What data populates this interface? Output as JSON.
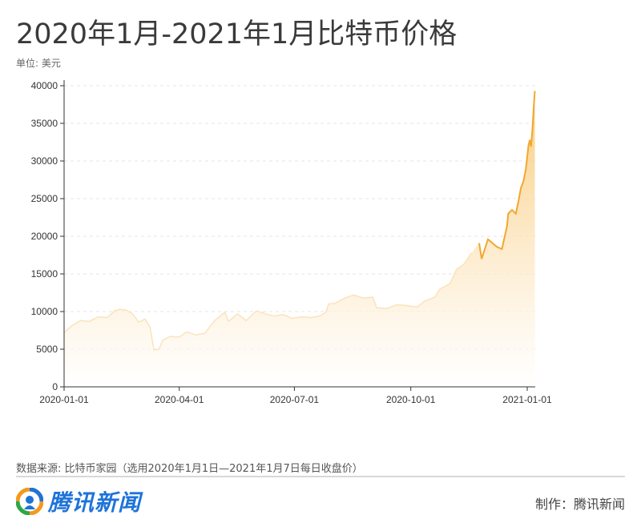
{
  "header": {
    "title": "2020年1月-2021年1月比特币价格",
    "unit": "单位: 美元"
  },
  "footer": {
    "source": "数据来源: 比特币家园（选用2020年1月1日—2021年1月7日每日收盘价）",
    "logo_text": "腾讯新闻",
    "credit": "制作：腾讯新闻"
  },
  "colors": {
    "line": "#f2a72e",
    "area_top": "#f9c874",
    "area_bottom": "#ffffff",
    "grid": "#e6e6e6",
    "logo_blue": "#1e73d8",
    "logo_orange": "#f29a1f",
    "logo_green": "#2aa84a"
  },
  "chart_data": {
    "type": "area",
    "title": "2020年1月-2021年1月比特币价格",
    "ylabel": "单位: 美元",
    "xlabel": "",
    "ylim": [
      0,
      40000
    ],
    "xlim": [
      "2020-01-01",
      "2021-01-07"
    ],
    "y_ticks": [
      "0",
      "5000",
      "10000",
      "15000",
      "20000",
      "25000",
      "30000",
      "35000",
      "40000"
    ],
    "x_ticks": [
      "2020-01-01",
      "2020-04-01",
      "2020-07-01",
      "2020-10-01",
      "2021-01-01"
    ],
    "grid": true,
    "series": [
      {
        "values": [
          [
            "2020-01-01",
            7200
          ],
          [
            "2020-01-07",
            8100
          ],
          [
            "2020-01-14",
            8800
          ],
          [
            "2020-01-21",
            8700
          ],
          [
            "2020-01-28",
            9300
          ],
          [
            "2020-02-04",
            9200
          ],
          [
            "2020-02-10",
            10100
          ],
          [
            "2020-02-14",
            10300
          ],
          [
            "2020-02-19",
            10200
          ],
          [
            "2020-02-24",
            9700
          ],
          [
            "2020-02-29",
            8600
          ],
          [
            "2020-03-05",
            9000
          ],
          [
            "2020-03-09",
            7900
          ],
          [
            "2020-03-12",
            4900
          ],
          [
            "2020-03-16",
            5000
          ],
          [
            "2020-03-19",
            6200
          ],
          [
            "2020-03-25",
            6700
          ],
          [
            "2020-04-01",
            6600
          ],
          [
            "2020-04-07",
            7300
          ],
          [
            "2020-04-14",
            6900
          ],
          [
            "2020-04-21",
            7100
          ],
          [
            "2020-04-29",
            8800
          ],
          [
            "2020-05-07",
            9900
          ],
          [
            "2020-05-10",
            8700
          ],
          [
            "2020-05-17",
            9700
          ],
          [
            "2020-05-24",
            8800
          ],
          [
            "2020-06-01",
            10100
          ],
          [
            "2020-06-08",
            9700
          ],
          [
            "2020-06-15",
            9400
          ],
          [
            "2020-06-22",
            9600
          ],
          [
            "2020-06-29",
            9100
          ],
          [
            "2020-07-07",
            9300
          ],
          [
            "2020-07-14",
            9200
          ],
          [
            "2020-07-21",
            9400
          ],
          [
            "2020-07-26",
            9900
          ],
          [
            "2020-07-28",
            11000
          ],
          [
            "2020-08-02",
            11100
          ],
          [
            "2020-08-10",
            11800
          ],
          [
            "2020-08-17",
            12200
          ],
          [
            "2020-08-24",
            11800
          ],
          [
            "2020-09-01",
            11900
          ],
          [
            "2020-09-04",
            10500
          ],
          [
            "2020-09-12",
            10400
          ],
          [
            "2020-09-20",
            10900
          ],
          [
            "2020-09-28",
            10800
          ],
          [
            "2020-10-06",
            10600
          ],
          [
            "2020-10-12",
            11400
          ],
          [
            "2020-10-20",
            11900
          ],
          [
            "2020-10-24",
            13000
          ],
          [
            "2020-11-01",
            13700
          ],
          [
            "2020-11-06",
            15600
          ],
          [
            "2020-11-12",
            16300
          ],
          [
            "2020-11-18",
            17800
          ],
          [
            "2020-11-24",
            19100
          ],
          [
            "2020-11-26",
            17000
          ],
          [
            "2020-12-01",
            19600
          ],
          [
            "2020-12-08",
            18600
          ],
          [
            "2020-12-12",
            18300
          ],
          [
            "2020-12-16",
            21300
          ],
          [
            "2020-12-17",
            23000
          ],
          [
            "2020-12-20",
            23500
          ],
          [
            "2020-12-23",
            23000
          ],
          [
            "2020-12-25",
            24600
          ],
          [
            "2020-12-27",
            26400
          ],
          [
            "2020-12-29",
            27300
          ],
          [
            "2020-12-31",
            29000
          ],
          [
            "2021-01-02",
            32100
          ],
          [
            "2021-01-03",
            32800
          ],
          [
            "2021-01-04",
            31900
          ],
          [
            "2021-01-05",
            33900
          ],
          [
            "2021-01-06",
            36800
          ],
          [
            "2021-01-07",
            39300
          ]
        ]
      }
    ]
  }
}
